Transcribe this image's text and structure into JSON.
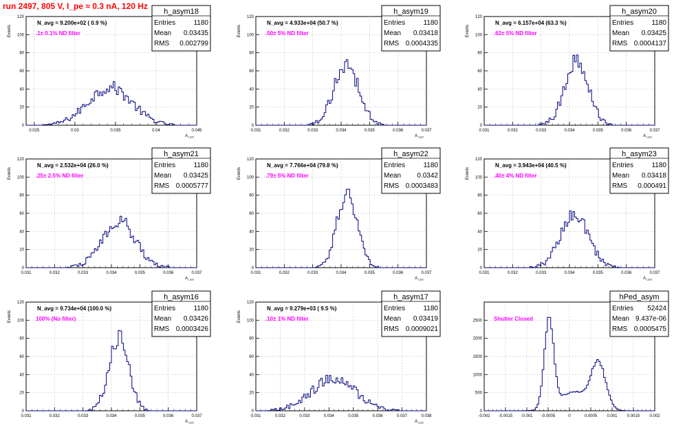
{
  "page": {
    "title": "run 2497,   805 V, I_pe ≈ 0.3 nA, 120 Hz"
  },
  "stats_labels": {
    "entries": "Entries",
    "mean": "Mean",
    "rms": "RMS"
  },
  "chart_data": [
    {
      "type": "histogram",
      "name": "h_asym18",
      "title": "N_avg = 9.200e+02 ( 0.9 %)",
      "annotation": ".1± 0.1% ND filter",
      "xlabel": "A_LED",
      "ylabel": "Events",
      "xlim": [
        0.024,
        0.045
      ],
      "ylim": [
        0,
        120
      ],
      "xticks": [
        0.025,
        0.03,
        0.035,
        0.04,
        0.045
      ],
      "xtick_labels": [
        "0.025",
        "0.03",
        "0.035",
        "0.04",
        "0.045"
      ],
      "yticks": [
        0,
        20,
        40,
        60,
        80,
        100,
        120
      ],
      "stats": {
        "entries": "1180",
        "mean": "0.03435",
        "rms": "0.002799"
      },
      "grid": true,
      "peaks": [
        {
          "mu": 0.0343,
          "sigma": 0.0027,
          "height": 42
        }
      ]
    },
    {
      "type": "histogram",
      "name": "h_asym19",
      "title": "N_avg = 4.933e+04 (50.7 %)",
      "annotation": ".50± 5% ND filter",
      "xlabel": "A_LED",
      "ylabel": "Events",
      "xlim": [
        0.031,
        0.037
      ],
      "ylim": [
        0,
        120
      ],
      "xticks": [
        0.031,
        0.032,
        0.033,
        0.034,
        0.035,
        0.036,
        0.037
      ],
      "xtick_labels": [
        "0.031",
        "0.032",
        "0.033",
        "0.034",
        "0.035",
        "0.036",
        "0.037"
      ],
      "yticks": [
        0,
        20,
        40,
        60,
        80,
        100,
        120
      ],
      "stats": {
        "entries": "1180",
        "mean": "0.03418",
        "rms": "0.0004335"
      },
      "grid": true,
      "peaks": [
        {
          "mu": 0.03418,
          "sigma": 0.00043,
          "height": 68
        }
      ]
    },
    {
      "type": "histogram",
      "name": "h_asym20",
      "title": "N_avg = 6.157e+04 (63.3 %)",
      "annotation": ".63± 5% ND filter",
      "xlabel": "A_LED",
      "ylabel": "Events",
      "xlim": [
        0.031,
        0.037
      ],
      "ylim": [
        0,
        120
      ],
      "xticks": [
        0.031,
        0.032,
        0.033,
        0.034,
        0.035,
        0.036,
        0.037
      ],
      "xtick_labels": [
        "0.031",
        "0.032",
        "0.033",
        "0.034",
        "0.035",
        "0.036",
        "0.037"
      ],
      "yticks": [
        0,
        20,
        40,
        60,
        80,
        100,
        120
      ],
      "stats": {
        "entries": "1180",
        "mean": "0.03425",
        "rms": "0.0004137"
      },
      "grid": true,
      "peaks": [
        {
          "mu": 0.03425,
          "sigma": 0.00041,
          "height": 72
        }
      ]
    },
    {
      "type": "histogram",
      "name": "h_asym21",
      "title": "N_avg = 2.532e+04 (26.0 %)",
      "annotation": ".25± 2.5% ND filter",
      "xlabel": "A_LED",
      "ylabel": "Events",
      "xlim": [
        0.031,
        0.037
      ],
      "ylim": [
        0,
        120
      ],
      "xticks": [
        0.031,
        0.032,
        0.033,
        0.034,
        0.035,
        0.036,
        0.037
      ],
      "xtick_labels": [
        "0.031",
        "0.032",
        "0.033",
        "0.034",
        "0.035",
        "0.036",
        "0.037"
      ],
      "yticks": [
        0,
        20,
        40,
        60,
        80,
        100,
        120
      ],
      "stats": {
        "entries": "1180",
        "mean": "0.03425",
        "rms": "0.0005777"
      },
      "grid": true,
      "peaks": [
        {
          "mu": 0.03425,
          "sigma": 0.00058,
          "height": 52
        }
      ]
    },
    {
      "type": "histogram",
      "name": "h_asym22",
      "title": "N_avg = 7.766e+04 (79.8 %)",
      "annotation": ".79± 5% ND filter",
      "xlabel": "A_LED",
      "ylabel": "Events",
      "xlim": [
        0.031,
        0.037
      ],
      "ylim": [
        0,
        120
      ],
      "xticks": [
        0.031,
        0.032,
        0.033,
        0.034,
        0.035,
        0.036,
        0.037
      ],
      "xtick_labels": [
        "0.031",
        "0.032",
        "0.033",
        "0.034",
        "0.035",
        "0.036",
        "0.037"
      ],
      "yticks": [
        0,
        20,
        40,
        60,
        80,
        100,
        120
      ],
      "stats": {
        "entries": "1180",
        "mean": "0.0342",
        "rms": "0.0003483"
      },
      "grid": true,
      "peaks": [
        {
          "mu": 0.0342,
          "sigma": 0.00035,
          "height": 82
        }
      ]
    },
    {
      "type": "histogram",
      "name": "h_asym23",
      "title": "N_avg = 3.943e+04 (40.5 %)",
      "annotation": ".40± 4% ND filter",
      "xlabel": "A_LED",
      "ylabel": "Events",
      "xlim": [
        0.031,
        0.037
      ],
      "ylim": [
        0,
        120
      ],
      "xticks": [
        0.031,
        0.032,
        0.033,
        0.034,
        0.035,
        0.036,
        0.037
      ],
      "xtick_labels": [
        "0.031",
        "0.032",
        "0.033",
        "0.034",
        "0.035",
        "0.036",
        "0.037"
      ],
      "yticks": [
        0,
        20,
        40,
        60,
        80,
        100,
        120
      ],
      "stats": {
        "entries": "1180",
        "mean": "0.03418",
        "rms": "0.000491"
      },
      "grid": true,
      "peaks": [
        {
          "mu": 0.03418,
          "sigma": 0.00049,
          "height": 58
        }
      ]
    },
    {
      "type": "histogram",
      "name": "h_asym16",
      "title": "N_avg = 9.734e+04 (100.0 %)",
      "annotation": "100% (No filter)",
      "xlabel": "A_LED",
      "ylabel": "Events",
      "xlim": [
        0.031,
        0.037
      ],
      "ylim": [
        0,
        120
      ],
      "xticks": [
        0.031,
        0.032,
        0.033,
        0.034,
        0.035,
        0.036,
        0.037
      ],
      "xtick_labels": [
        "0.031",
        "0.032",
        "0.033",
        "0.034",
        "0.035",
        "0.036",
        "0.037"
      ],
      "yticks": [
        0,
        20,
        40,
        60,
        80,
        100,
        120
      ],
      "stats": {
        "entries": "1180",
        "mean": "0.03426",
        "rms": "0.0003426"
      },
      "grid": true,
      "peaks": [
        {
          "mu": 0.03426,
          "sigma": 0.00034,
          "height": 82
        }
      ]
    },
    {
      "type": "histogram",
      "name": "h_asym17",
      "title": "N_avg = 9.279e+03 ( 9.5 %)",
      "annotation": ".10± 1% ND filter",
      "xlabel": "A_LED",
      "ylabel": "Events",
      "xlim": [
        0.031,
        0.038
      ],
      "ylim": [
        0,
        120
      ],
      "xticks": [
        0.031,
        0.032,
        0.033,
        0.034,
        0.035,
        0.036,
        0.037,
        0.038
      ],
      "xtick_labels": [
        "0.031",
        "0.032",
        "0.033",
        "0.034",
        "0.035",
        "0.036",
        "0.037",
        "0.038"
      ],
      "yticks": [
        0,
        20,
        40,
        60,
        80,
        100,
        120
      ],
      "stats": {
        "entries": "1180",
        "mean": "0.03419",
        "rms": "0.0009021"
      },
      "grid": true,
      "peaks": [
        {
          "mu": 0.03419,
          "sigma": 0.0009,
          "height": 36
        }
      ]
    },
    {
      "type": "histogram",
      "name": "hPed_asym",
      "title": "",
      "annotation": "Shutter Closed",
      "xlabel": "",
      "ylabel": "",
      "xlim": [
        -0.002,
        0.002
      ],
      "ylim": [
        0,
        3000
      ],
      "xticks": [
        -0.002,
        -0.0015,
        -0.001,
        -0.0005,
        0,
        0.0005,
        0.001,
        0.0015,
        0.002
      ],
      "xtick_labels": [
        "-0.002",
        "-0.0015",
        "-0.001",
        "-0.0005",
        "0",
        "0.0005",
        "0.001",
        "0.0015",
        "0.002"
      ],
      "yticks": [
        0,
        500,
        1000,
        1500,
        2000,
        2500
      ],
      "stats": {
        "entries": "52424",
        "mean": "9.437e-06",
        "rms": "0.0005475"
      },
      "grid": true,
      "peaks": [
        {
          "mu": -0.00048,
          "sigma": 0.00011,
          "height": 2450
        },
        {
          "mu": 0.00068,
          "sigma": 0.00017,
          "height": 1250
        },
        {
          "mu": 0.0001,
          "sigma": 0.00035,
          "height": 520
        }
      ]
    }
  ],
  "colors": {
    "hist_line": "#000080",
    "title_red": "#ff0000",
    "annotation_magenta": "#ff00ff",
    "grid": "#c8c8c8",
    "axis": "#000000"
  }
}
